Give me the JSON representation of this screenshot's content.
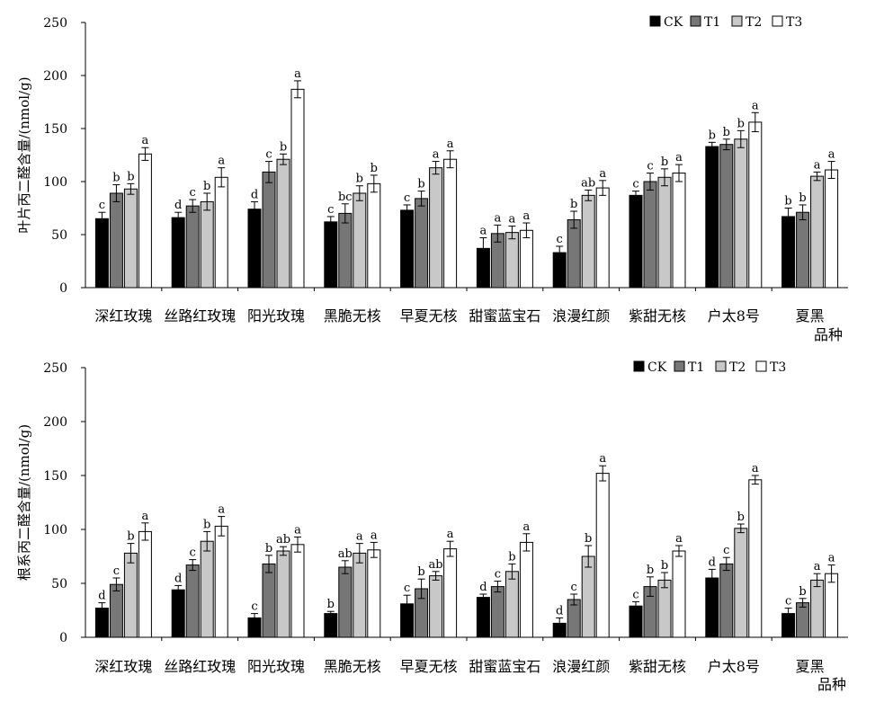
{
  "chart_data": [
    {
      "type": "bar",
      "ylabel": "叶片丙二醛含量/(nmol/g)",
      "xlabel": "品种",
      "ylim": [
        0,
        250
      ],
      "yticks": [
        "0",
        "50",
        "100",
        "150",
        "200",
        "250"
      ],
      "categories": [
        "深红玫瑰",
        "丝路红玫瑰",
        "阳光玫瑰",
        "黑脆无核",
        "早夏无核",
        "甜蜜蓝宝石",
        "浪漫红颜",
        "紫甜无核",
        "户太8号",
        "夏黑"
      ],
      "legend_position": "top-right",
      "series": [
        {
          "name": "CK",
          "color": "#000000",
          "values": [
            65,
            66,
            74,
            62,
            73,
            37,
            33,
            87,
            133,
            67
          ],
          "errors": [
            6,
            5,
            7,
            5,
            5,
            10,
            6,
            4,
            4,
            8
          ],
          "letters": [
            "c",
            "d",
            "d",
            "c",
            "c",
            "a",
            "c",
            "c",
            "b",
            "b"
          ]
        },
        {
          "name": "T1",
          "color": "#777777",
          "values": [
            89,
            77,
            109,
            70,
            84,
            51,
            64,
            100,
            135,
            71
          ],
          "errors": [
            8,
            6,
            10,
            9,
            7,
            8,
            8,
            8,
            5,
            7
          ],
          "letters": [
            "b",
            "c",
            "c",
            "bc",
            "b",
            "a",
            "b",
            "c",
            "b",
            "b"
          ]
        },
        {
          "name": "T2",
          "color": "#c8c8c8",
          "values": [
            93,
            81,
            121,
            89,
            113,
            52,
            87,
            104,
            140,
            105
          ],
          "errors": [
            5,
            8,
            5,
            7,
            6,
            6,
            5,
            8,
            8,
            4
          ],
          "letters": [
            "b",
            "b",
            "b",
            "b",
            "a",
            "a",
            "ab",
            "b",
            "b",
            "a"
          ]
        },
        {
          "name": "T3",
          "color": "#ffffff",
          "values": [
            126,
            104,
            187,
            98,
            121,
            54,
            94,
            108,
            156,
            111
          ],
          "errors": [
            6,
            9,
            8,
            8,
            8,
            7,
            7,
            8,
            9,
            8
          ],
          "letters": [
            "a",
            "a",
            "a",
            "b",
            "a",
            "a",
            "a",
            "a",
            "a",
            "a"
          ]
        }
      ]
    },
    {
      "type": "bar",
      "ylabel": "根系丙二醛含量/(nmol/g)",
      "xlabel": "品种",
      "ylim": [
        0,
        250
      ],
      "yticks": [
        "0",
        "50",
        "100",
        "150",
        "200",
        "250"
      ],
      "categories": [
        "深红玫瑰",
        "丝路红玫瑰",
        "阳光玫瑰",
        "黑脆无核",
        "早夏无核",
        "甜蜜蓝宝石",
        "浪漫红颜",
        "紫甜无核",
        "户太8号",
        "夏黑"
      ],
      "legend_position": "top-right",
      "series": [
        {
          "name": "CK",
          "color": "#000000",
          "values": [
            27,
            44,
            18,
            22,
            31,
            37,
            13,
            29,
            55,
            22
          ],
          "errors": [
            5,
            4,
            4,
            2,
            8,
            3,
            5,
            4,
            8,
            5
          ],
          "letters": [
            "d",
            "d",
            "c",
            "b",
            "c",
            "d",
            "d",
            "c",
            "d",
            "c"
          ]
        },
        {
          "name": "T1",
          "color": "#777777",
          "values": [
            49,
            67,
            68,
            65,
            45,
            47,
            35,
            47,
            68,
            32
          ],
          "errors": [
            6,
            5,
            8,
            6,
            9,
            5,
            5,
            9,
            6,
            4
          ],
          "letters": [
            "c",
            "c",
            "b",
            "ab",
            "b",
            "c",
            "c",
            "b",
            "c",
            "b"
          ]
        },
        {
          "name": "T2",
          "color": "#c8c8c8",
          "values": [
            78,
            89,
            80,
            78,
            57,
            61,
            75,
            53,
            101,
            53
          ],
          "errors": [
            9,
            9,
            4,
            9,
            4,
            7,
            10,
            7,
            4,
            6
          ],
          "letters": [
            "b",
            "b",
            "ab",
            "a",
            "ab",
            "b",
            "b",
            "b",
            "b",
            "a"
          ]
        },
        {
          "name": "T3",
          "color": "#ffffff",
          "values": [
            98,
            103,
            86,
            81,
            82,
            88,
            152,
            80,
            146,
            59
          ],
          "errors": [
            8,
            9,
            7,
            7,
            7,
            8,
            7,
            5,
            4,
            8
          ],
          "letters": [
            "a",
            "a",
            "a",
            "a",
            "a",
            "a",
            "a",
            "a",
            "a",
            "a"
          ]
        }
      ]
    }
  ]
}
